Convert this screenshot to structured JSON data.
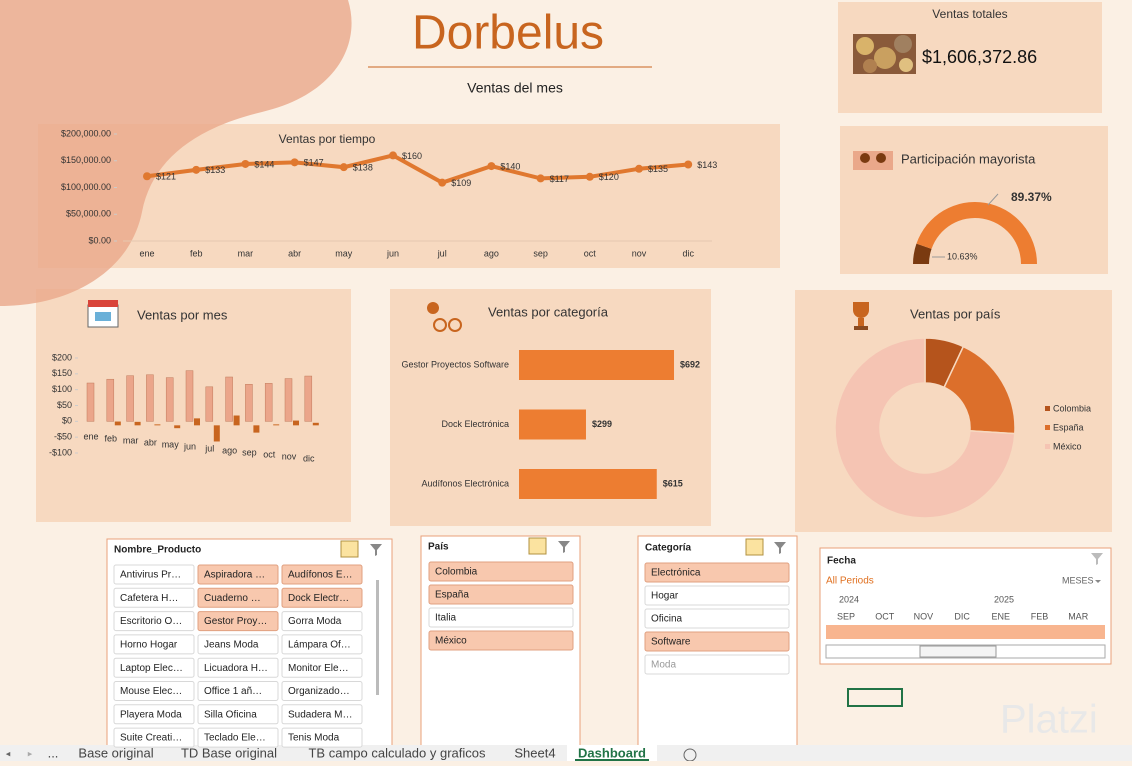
{
  "header": {
    "title": "Dorbelus",
    "subtitle": "Ventas del mes"
  },
  "kpi": {
    "label": "Ventas totales",
    "value": "$1,606,372.86"
  },
  "chart_data": [
    {
      "type": "line",
      "title": "Ventas por tiempo",
      "categories": [
        "ene",
        "feb",
        "mar",
        "abr",
        "may",
        "jun",
        "jul",
        "ago",
        "sep",
        "oct",
        "nov",
        "dic"
      ],
      "values": [
        121000,
        133000,
        144000,
        147000,
        138000,
        160000,
        109000,
        140000,
        117000,
        120000,
        135000,
        143000
      ],
      "value_labels": [
        "$121",
        "$133",
        "$144",
        "$147",
        "$138",
        "$160",
        "$109",
        "$140",
        "$117",
        "$120",
        "$135",
        "$143"
      ],
      "color": "#e0782f",
      "ylim": [
        0,
        200000
      ],
      "yticks": [
        {
          "value": 0,
          "label": "$0.00"
        },
        {
          "value": 50000,
          "label": "$50,000.00"
        },
        {
          "value": 100000,
          "label": "$100,000.00"
        },
        {
          "value": 150000,
          "label": "$150,000.00"
        },
        {
          "value": 200000,
          "label": "$200,000.00"
        }
      ]
    },
    {
      "type": "bar",
      "title": "Ventas por mes",
      "categories": [
        "ene",
        "feb",
        "mar",
        "abr",
        "may",
        "jun",
        "jul",
        "ago",
        "sep",
        "oct",
        "nov",
        "dic"
      ],
      "series": [
        {
          "color": "#eba58a",
          "values": [
            121,
            133,
            144,
            147,
            138,
            160,
            109,
            140,
            117,
            120,
            135,
            143
          ]
        },
        {
          "color": "#c8651f",
          "values": [
            0,
            12,
            11,
            3,
            -9,
            22,
            -51,
            31,
            -23,
            3,
            15,
            8
          ]
        }
      ],
      "ylim": [
        -100,
        200
      ],
      "yticks": [
        {
          "value": -100,
          "label": "-$100"
        },
        {
          "value": -50,
          "label": "-$50"
        },
        {
          "value": 0,
          "label": "$0"
        },
        {
          "value": 50,
          "label": "$50"
        },
        {
          "value": 100,
          "label": "$100"
        },
        {
          "value": 150,
          "label": "$150"
        },
        {
          "value": 200,
          "label": "$200"
        }
      ]
    },
    {
      "type": "bar",
      "orientation": "horizontal",
      "title": "Ventas por categoría",
      "categories": [
        "Gestor Proyectos Software",
        "Dock Electrónica",
        "Audífonos Electrónica"
      ],
      "values": [
        692,
        299,
        615
      ],
      "value_labels": [
        "$692",
        "$299",
        "$615"
      ],
      "color": "#ed7d31"
    },
    {
      "type": "doughnut",
      "title": "Ventas por país",
      "categories": [
        "Colombia",
        "España",
        "México"
      ],
      "values": [
        7,
        19,
        74
      ],
      "colors": [
        "#b5541c",
        "#dc6f2b",
        "#f5c4b3"
      ],
      "legend": "right"
    },
    {
      "type": "gauge",
      "title": "Participación mayorista",
      "values": [
        10.63,
        89.37
      ],
      "value_labels": [
        "10.63%",
        "89.37%"
      ],
      "colors": [
        "#7a3a10",
        "#ed7d31"
      ]
    }
  ],
  "slicers": [
    {
      "title": "Nombre_Producto",
      "items": [
        {
          "label": "Antivirus Pr…",
          "selected": false
        },
        {
          "label": "Aspiradora …",
          "selected": true
        },
        {
          "label": "Audífonos E…",
          "selected": true
        },
        {
          "label": "Cafetera H…",
          "selected": false
        },
        {
          "label": "Cuaderno …",
          "selected": true
        },
        {
          "label": "Dock Electr…",
          "selected": true
        },
        {
          "label": "Escritorio O…",
          "selected": false
        },
        {
          "label": "Gestor Proy…",
          "selected": true
        },
        {
          "label": "Gorra Moda",
          "selected": false
        },
        {
          "label": "Horno Hogar",
          "selected": false
        },
        {
          "label": "Jeans Moda",
          "selected": false
        },
        {
          "label": "Lámpara Of…",
          "selected": false
        },
        {
          "label": "Laptop Elec…",
          "selected": false
        },
        {
          "label": "Licuadora H…",
          "selected": false
        },
        {
          "label": "Monitor Ele…",
          "selected": false
        },
        {
          "label": "Mouse Elec…",
          "selected": false
        },
        {
          "label": "Office 1 añ…",
          "selected": false
        },
        {
          "label": "Organizado…",
          "selected": false
        },
        {
          "label": "Playera Moda",
          "selected": false
        },
        {
          "label": "Silla Oficina",
          "selected": false
        },
        {
          "label": "Sudadera M…",
          "selected": false
        },
        {
          "label": "Suite Creati…",
          "selected": false
        },
        {
          "label": "Teclado Ele…",
          "selected": false
        },
        {
          "label": "Tenis Moda",
          "selected": false
        }
      ]
    },
    {
      "title": "País",
      "items": [
        {
          "label": "Colombia",
          "selected": true
        },
        {
          "label": "España",
          "selected": true
        },
        {
          "label": "Italia",
          "selected": false
        },
        {
          "label": "México",
          "selected": true
        }
      ]
    },
    {
      "title": "Categoría",
      "items": [
        {
          "label": "Electrónica",
          "selected": true
        },
        {
          "label": "Hogar",
          "selected": false
        },
        {
          "label": "Oficina",
          "selected": false
        },
        {
          "label": "Software",
          "selected": true
        },
        {
          "label": "Moda",
          "selected": false,
          "available": false
        }
      ]
    }
  ],
  "timeline": {
    "title": "Fecha",
    "periods": "All Periods",
    "level": "MESES",
    "years": [
      "2024",
      "2025"
    ],
    "months": [
      "SEP",
      "OCT",
      "NOV",
      "DIC",
      "ENE",
      "FEB",
      "MAR"
    ]
  },
  "sheet_tabs": {
    "items": [
      "...",
      "Base original",
      "TD Base original",
      "TB campo calculado y graficos",
      "Sheet4",
      "Dashboard"
    ],
    "active": 5
  },
  "watermark": "Platzi"
}
